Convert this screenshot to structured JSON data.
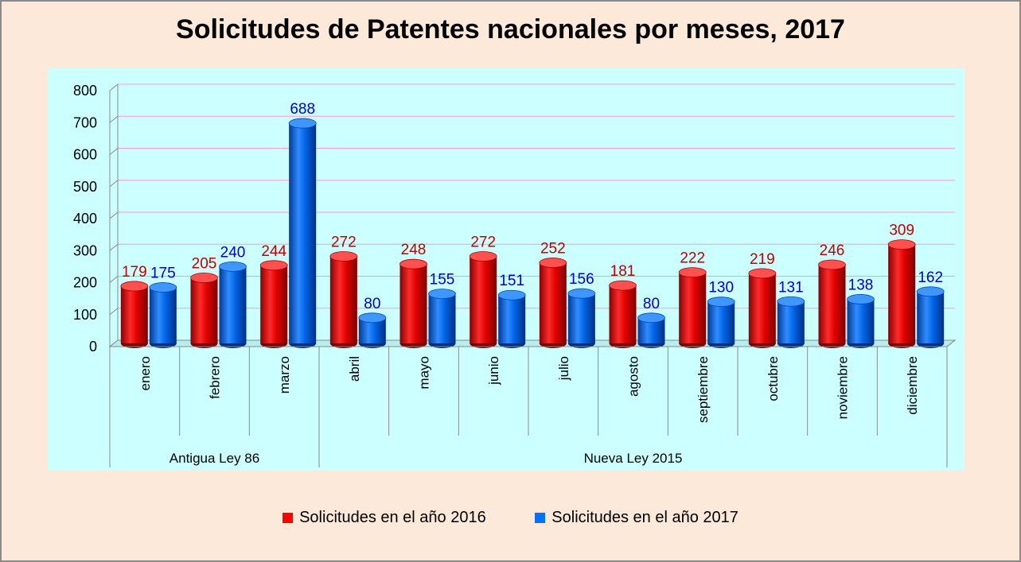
{
  "chart_data": {
    "type": "bar",
    "title": "Solicitudes de Patentes nacionales por meses, 2017",
    "categories": [
      "enero",
      "febrero",
      "marzo",
      "abril",
      "mayo",
      "junio",
      "julio",
      "agosto",
      "septiembre",
      "octubre",
      "noviembre",
      "diciembre"
    ],
    "groups": [
      {
        "label": "Antigua Ley 86",
        "count": 3
      },
      {
        "label": "Nueva Ley 2015",
        "count": 9
      }
    ],
    "series": [
      {
        "name": "Solicitudes en el año 2016",
        "color": "#ff0000",
        "label_color": "#c00000",
        "values": [
          179,
          205,
          244,
          272,
          248,
          272,
          252,
          181,
          222,
          219,
          246,
          309
        ]
      },
      {
        "name": "Solicitudes en el año 2017",
        "color": "#0070ff",
        "label_color": "#0000cc",
        "values": [
          175,
          240,
          688,
          80,
          155,
          151,
          156,
          80,
          130,
          131,
          138,
          162
        ]
      }
    ],
    "ylim": [
      0,
      800
    ],
    "yticks": [
      0,
      100,
      200,
      300,
      400,
      500,
      600,
      700,
      800
    ],
    "xlabel": "",
    "ylabel": "",
    "grid": true,
    "legend_position": "bottom"
  }
}
